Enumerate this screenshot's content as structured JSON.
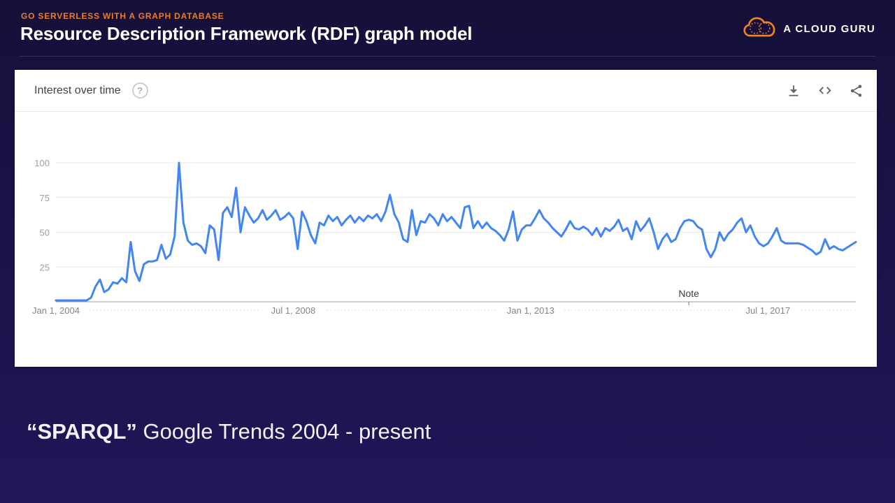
{
  "slide": {
    "eyebrow": "GO SERVERLESS WITH A GRAPH DATABASE",
    "title": "Resource Description Framework (RDF) graph model",
    "caption": {
      "bold": "“SPARQL”",
      "rest": " Google Trends 2004 - present"
    }
  },
  "logo": {
    "label": "A CLOUD GURU",
    "icon": "cloud-icon",
    "accent_color": "#f0861e"
  },
  "widget": {
    "title": "Interest over time",
    "icons": {
      "help": "help-icon",
      "toolbar": [
        "download-icon",
        "embed-icon",
        "share-icon"
      ]
    }
  },
  "colors": {
    "background_top": "#151039",
    "background_bottom": "#221658",
    "accent_orange": "#ee7b28",
    "card": "#ffffff",
    "trend_line": "#4285f4",
    "gridline": "#e9e9e9",
    "axis_line": "#9e9e9e",
    "tick_label": "#8f9499"
  },
  "chart_data": {
    "type": "line",
    "title": "Interest over time",
    "interval": "monthly",
    "start": "2004-01",
    "end": "2019-03",
    "ylim": [
      0,
      100
    ],
    "y_ticks": [
      25,
      50,
      75,
      100
    ],
    "x_tick_labels": [
      {
        "label": "Jan 1, 2004",
        "month_index": 0
      },
      {
        "label": "Jul 1, 2008",
        "month_index": 54
      },
      {
        "label": "Jan 1, 2013",
        "month_index": 108
      },
      {
        "label": "Jul 1, 2017",
        "month_index": 162
      }
    ],
    "note": {
      "label": "Note",
      "month_index": 144
    },
    "line_color": "#4285f4",
    "grid": true,
    "legend": false,
    "series": [
      {
        "name": "SPARQL",
        "values": [
          1,
          1,
          1,
          1,
          1,
          1,
          1,
          1,
          3,
          11,
          16,
          7,
          9,
          14,
          13,
          17,
          14,
          43,
          22,
          15,
          27,
          29,
          29,
          30,
          41,
          31,
          34,
          47,
          100,
          57,
          44,
          41,
          42,
          40,
          35,
          55,
          52,
          30,
          64,
          68,
          61,
          82,
          50,
          68,
          62,
          57,
          60,
          66,
          59,
          62,
          66,
          59,
          61,
          64,
          60,
          38,
          65,
          58,
          48,
          42,
          57,
          55,
          62,
          58,
          61,
          55,
          59,
          62,
          57,
          61,
          58,
          62,
          60,
          63,
          58,
          65,
          77,
          63,
          57,
          45,
          43,
          66,
          48,
          58,
          57,
          63,
          60,
          55,
          63,
          58,
          61,
          57,
          53,
          68,
          69,
          53,
          58,
          53,
          57,
          53,
          51,
          48,
          44,
          52,
          65,
          44,
          52,
          55,
          55,
          60,
          66,
          60,
          57,
          53,
          50,
          47,
          52,
          58,
          53,
          52,
          54,
          52,
          48,
          53,
          47,
          53,
          51,
          54,
          59,
          51,
          53,
          45,
          58,
          51,
          55,
          60,
          50,
          38,
          45,
          49,
          43,
          45,
          53,
          58,
          59,
          58,
          54,
          52,
          38,
          32,
          38,
          50,
          44,
          49,
          52,
          57,
          60,
          50,
          55,
          47,
          42,
          40,
          42,
          47,
          53,
          44,
          42,
          42,
          42,
          42,
          41,
          39,
          37,
          34,
          36,
          45,
          38,
          40,
          38,
          37,
          39,
          41,
          43
        ]
      }
    ]
  }
}
